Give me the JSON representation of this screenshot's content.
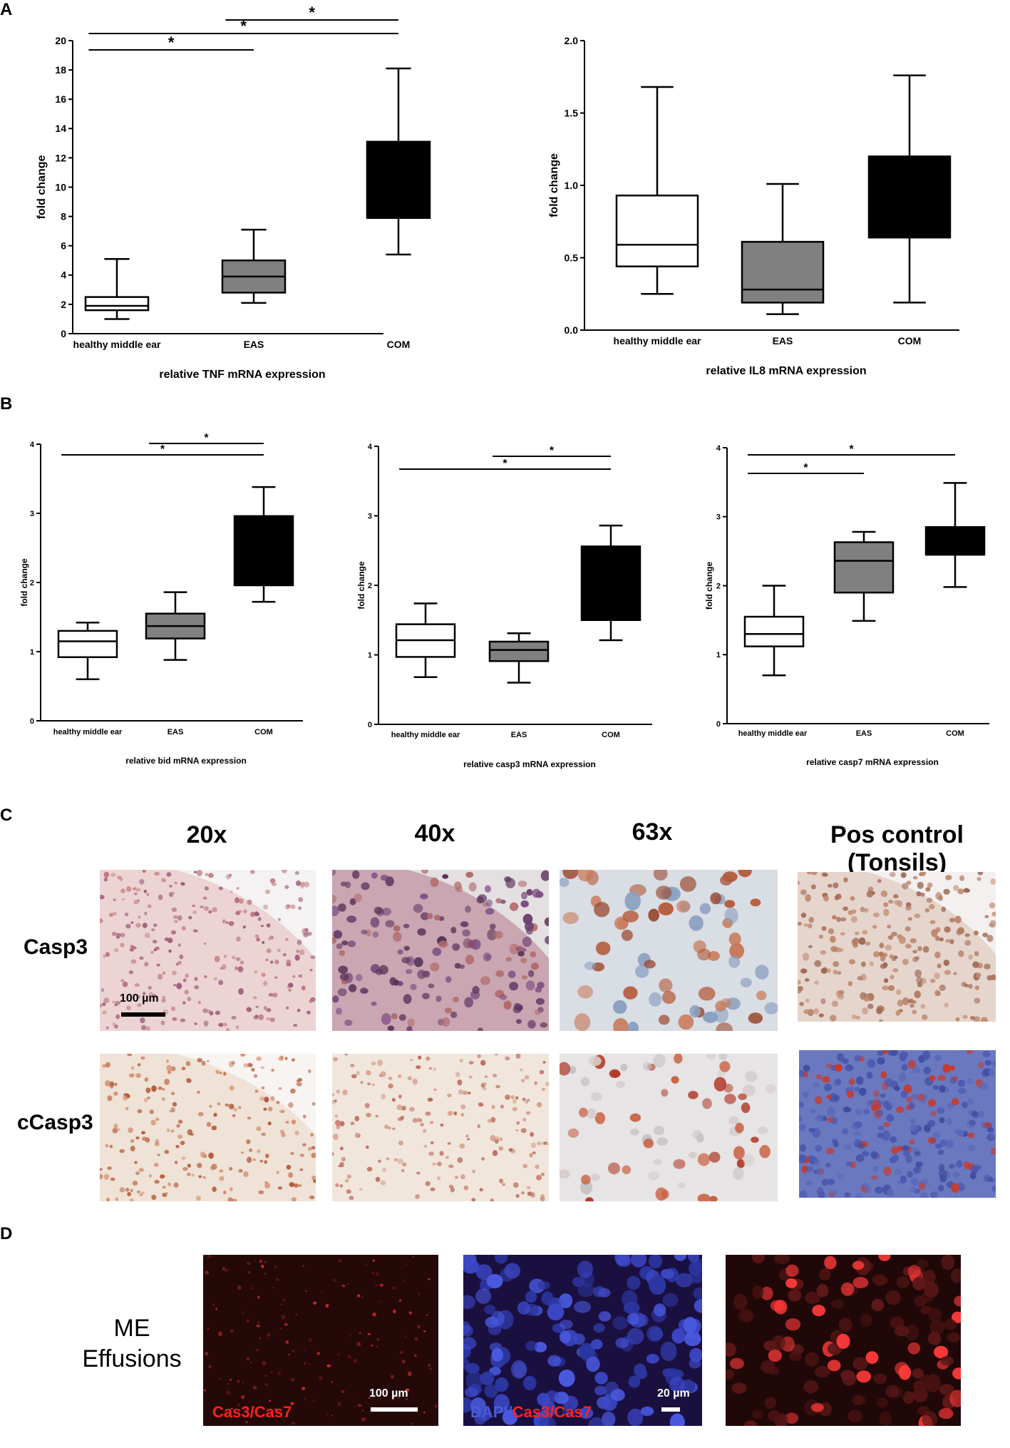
{
  "panels": {
    "a": "A",
    "b": "B",
    "c": "C",
    "d": "D"
  },
  "chart_data": [
    {
      "type": "box",
      "ylabel": "fold change",
      "xlabel": "relative TNF mRNA expression",
      "ylim": [
        0,
        20
      ],
      "yticks": [
        "0",
        "2",
        "4",
        "6",
        "8",
        "10",
        "12",
        "14",
        "16",
        "18",
        "20"
      ],
      "categories": [
        "healthy middle ear",
        "EAS",
        "COM"
      ],
      "fills": [
        "#ffffff",
        "#808080",
        "#000000"
      ],
      "boxes": [
        {
          "min": 1.0,
          "q1": 1.6,
          "median": 1.9,
          "q3": 2.5,
          "max": 5.1
        },
        {
          "min": 2.1,
          "q1": 2.8,
          "median": 3.9,
          "q3": 5.0,
          "max": 7.1
        },
        {
          "min": 5.4,
          "q1": 7.9,
          "median": 7.9,
          "q3": 13.1,
          "max": 18.1
        }
      ],
      "significance": [
        {
          "from": 0,
          "to": 1,
          "label": "*"
        },
        {
          "from": 0,
          "to": 2,
          "label": "*"
        },
        {
          "from": 1,
          "to": 2,
          "label": "*"
        }
      ]
    },
    {
      "type": "box",
      "ylabel": "fold change",
      "xlabel": "relative IL8 mRNA expression",
      "ylim": [
        0,
        2
      ],
      "yticks": [
        "0.0",
        "0.5",
        "1.0",
        "1.5",
        "2.0"
      ],
      "categories": [
        "healthy middle ear",
        "EAS",
        "COM"
      ],
      "fills": [
        "#ffffff",
        "#808080",
        "#000000"
      ],
      "boxes": [
        {
          "min": 0.25,
          "q1": 0.44,
          "median": 0.59,
          "q3": 0.93,
          "max": 1.68
        },
        {
          "min": 0.11,
          "q1": 0.19,
          "median": 0.28,
          "q3": 0.61,
          "max": 1.01
        },
        {
          "min": 0.19,
          "q1": 0.64,
          "median": 0.64,
          "q3": 1.2,
          "max": 1.76
        }
      ],
      "significance": []
    },
    {
      "type": "box",
      "ylabel": "fold change",
      "xlabel": "relative bid mRNA expression",
      "ylim": [
        0,
        4
      ],
      "yticks": [
        "0",
        "1",
        "2",
        "3",
        "4"
      ],
      "categories": [
        "healthy middle ear",
        "EAS",
        "COM"
      ],
      "fills": [
        "#ffffff",
        "#808080",
        "#000000"
      ],
      "boxes": [
        {
          "min": 0.6,
          "q1": 0.92,
          "median": 1.15,
          "q3": 1.3,
          "max": 1.42
        },
        {
          "min": 0.88,
          "q1": 1.19,
          "median": 1.37,
          "q3": 1.55,
          "max": 1.86
        },
        {
          "min": 1.72,
          "q1": 1.96,
          "median": 1.96,
          "q3": 2.96,
          "max": 3.38
        }
      ],
      "significance": [
        {
          "from": 0,
          "to": 2,
          "label": "*"
        },
        {
          "from": 1,
          "to": 2,
          "label": "*"
        }
      ]
    },
    {
      "type": "box",
      "ylabel": "fold change",
      "xlabel": "relative casp3 mRNA expression",
      "ylim": [
        0,
        4
      ],
      "yticks": [
        "0",
        "1",
        "2",
        "3",
        "4"
      ],
      "categories": [
        "healthy middle ear",
        "EAS",
        "COM"
      ],
      "fills": [
        "#ffffff",
        "#808080",
        "#000000"
      ],
      "boxes": [
        {
          "min": 0.68,
          "q1": 0.97,
          "median": 1.21,
          "q3": 1.44,
          "max": 1.74
        },
        {
          "min": 0.6,
          "q1": 0.91,
          "median": 1.07,
          "q3": 1.19,
          "max": 1.31
        },
        {
          "min": 1.21,
          "q1": 1.5,
          "median": 1.5,
          "q3": 2.56,
          "max": 2.86
        }
      ],
      "significance": [
        {
          "from": 0,
          "to": 2,
          "label": "*"
        },
        {
          "from": 1,
          "to": 2,
          "label": "*"
        }
      ]
    },
    {
      "type": "box",
      "ylabel": "fold change",
      "xlabel": "relative casp7 mRNA expression",
      "ylim": [
        0,
        4
      ],
      "yticks": [
        "0",
        "1",
        "2",
        "3",
        "4"
      ],
      "categories": [
        "healthy middle ear",
        "EAS",
        "COM"
      ],
      "fills": [
        "#ffffff",
        "#808080",
        "#000000"
      ],
      "boxes": [
        {
          "min": 0.7,
          "q1": 1.12,
          "median": 1.3,
          "q3": 1.55,
          "max": 2.0
        },
        {
          "min": 1.49,
          "q1": 1.9,
          "median": 2.36,
          "q3": 2.63,
          "max": 2.78
        },
        {
          "min": 1.98,
          "q1": 2.45,
          "median": 2.45,
          "q3": 2.85,
          "max": 3.49
        }
      ],
      "significance": [
        {
          "from": 0,
          "to": 1,
          "label": "*"
        },
        {
          "from": 0,
          "to": 2,
          "label": "*"
        }
      ]
    }
  ],
  "panel_c": {
    "columns": [
      "20x",
      "40x",
      "63x",
      "Pos control (Tonsils)"
    ],
    "rows": [
      "Casp3",
      "cCasp3"
    ],
    "scale": "100 µm"
  },
  "panel_d": {
    "label_line1": "ME",
    "label_line2": "Effusions",
    "img1_label": "Cas3/Cas7",
    "img2_label_dapi": "DAPI/",
    "img2_label_red": "Cas3/Cas7",
    "scale1": "100 µm",
    "scale2": "20 µm"
  }
}
